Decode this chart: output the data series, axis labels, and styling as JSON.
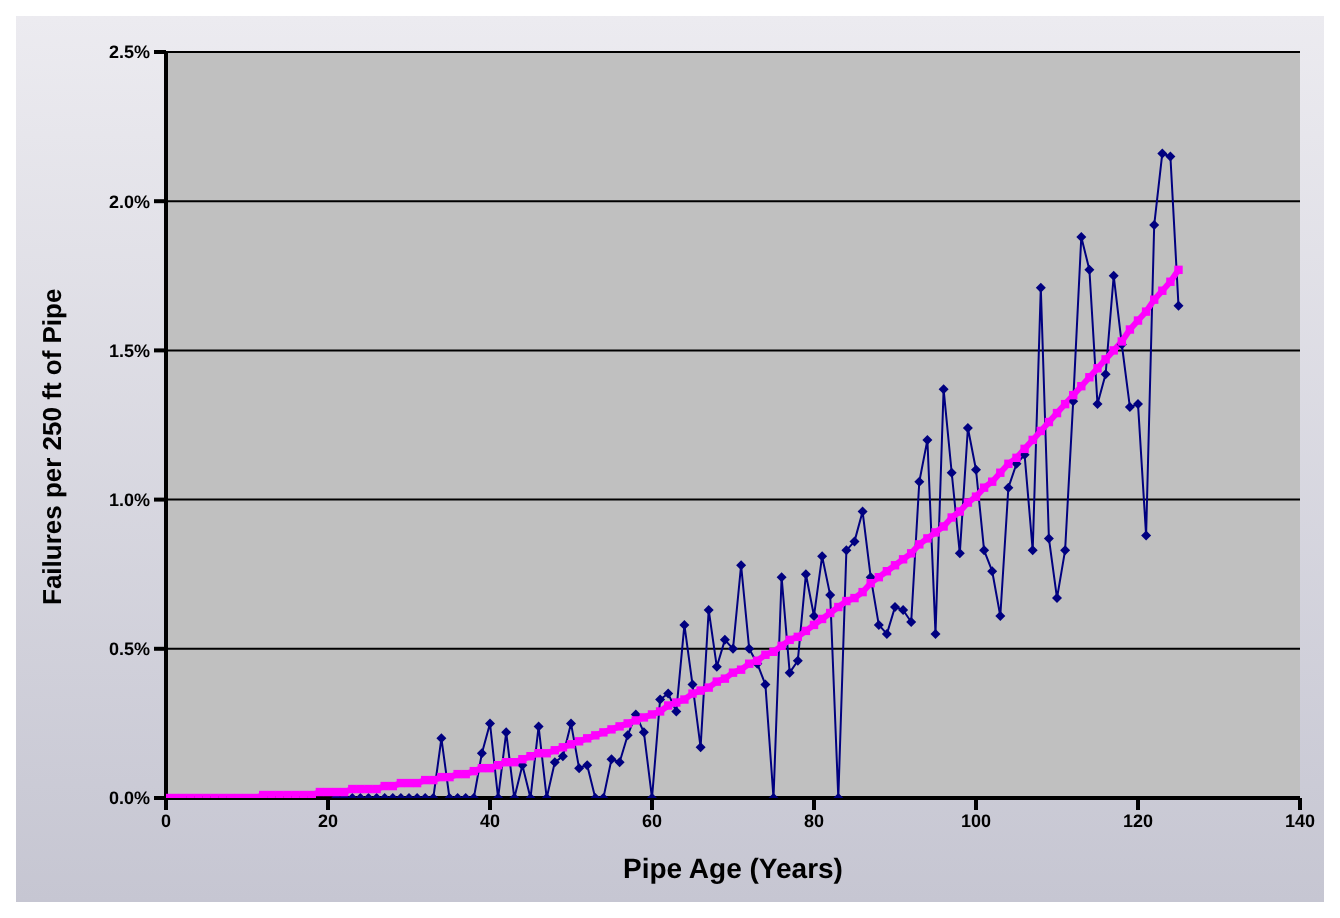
{
  "chart_data": {
    "type": "line",
    "xlabel": "Pipe Age (Years)",
    "ylabel": "Failures per 250 ft of Pipe",
    "xlim": [
      0,
      140
    ],
    "xticks": [
      0,
      20,
      40,
      60,
      80,
      100,
      120,
      140
    ],
    "ylim": [
      0,
      2.5
    ],
    "yticks": [
      {
        "value": 0,
        "label": "0.0%"
      },
      {
        "value": 0.5,
        "label": "0.5%"
      },
      {
        "value": 1,
        "label": "1.0%"
      },
      {
        "value": 1.5,
        "label": "1.5%"
      },
      {
        "value": 2,
        "label": "2.0%"
      },
      {
        "value": 2.5,
        "label": "2.5%"
      }
    ],
    "grid": "y",
    "series": [
      {
        "color": "#000080",
        "marker": "diamond",
        "x": [
          21,
          22,
          23,
          24,
          25,
          26,
          27,
          28,
          29,
          30,
          31,
          32,
          33,
          34,
          35,
          36,
          37,
          38,
          39,
          40,
          41,
          42,
          43,
          44,
          45,
          46,
          47,
          48,
          49,
          50,
          51,
          52,
          53,
          54,
          55,
          56,
          57,
          58,
          59,
          60,
          61,
          62,
          63,
          64,
          65,
          66,
          67,
          68,
          69,
          70,
          71,
          72,
          73,
          74,
          75,
          76,
          77,
          78,
          79,
          80,
          81,
          82,
          83,
          84,
          85,
          86,
          87,
          88,
          89,
          90,
          91,
          92,
          93,
          94,
          95,
          96,
          97,
          98,
          99,
          100,
          101,
          102,
          103,
          104,
          105,
          106,
          107,
          108,
          109,
          110,
          111,
          112,
          113,
          114,
          115,
          116,
          117,
          118,
          119,
          120,
          121,
          122,
          123,
          124,
          125
        ],
        "values": [
          0,
          0,
          0,
          0,
          0,
          0,
          0,
          0,
          0,
          0,
          0,
          0,
          0,
          0.2,
          0,
          0,
          0,
          0,
          0.15,
          0.25,
          0,
          0.22,
          0,
          0.11,
          0,
          0.24,
          0,
          0.12,
          0.14,
          0.25,
          0.1,
          0.11,
          0,
          0,
          0.13,
          0.12,
          0.21,
          0.28,
          0.22,
          0,
          0.33,
          0.35,
          0.29,
          0.58,
          0.38,
          0.17,
          0.63,
          0.44,
          0.53,
          0.5,
          0.78,
          0.5,
          0.45,
          0.38,
          0,
          0.74,
          0.42,
          0.46,
          0.75,
          0.61,
          0.81,
          0.68,
          0,
          0.83,
          0.86,
          0.96,
          0.74,
          0.58,
          0.55,
          0.64,
          0.63,
          0.59,
          1.06,
          1.2,
          0.55,
          1.37,
          1.09,
          0.82,
          1.24,
          1.1,
          0.83,
          0.76,
          0.61,
          1.04,
          1.12,
          1.15,
          0.83,
          1.71,
          0.87,
          0.67,
          0.83,
          1.33,
          1.88,
          1.77,
          1.32,
          1.42,
          1.75,
          1.52,
          1.31,
          1.32,
          0.88,
          1.92,
          2.16,
          2.15,
          1.65
        ]
      },
      {
        "color": "#ff00ff",
        "marker": "square",
        "x": [
          0,
          1,
          2,
          3,
          4,
          5,
          6,
          7,
          8,
          9,
          10,
          11,
          12,
          13,
          14,
          15,
          16,
          17,
          18,
          19,
          20,
          21,
          22,
          23,
          24,
          25,
          26,
          27,
          28,
          29,
          30,
          31,
          32,
          33,
          34,
          35,
          36,
          37,
          38,
          39,
          40,
          41,
          42,
          43,
          44,
          45,
          46,
          47,
          48,
          49,
          50,
          51,
          52,
          53,
          54,
          55,
          56,
          57,
          58,
          59,
          60,
          61,
          62,
          63,
          64,
          65,
          66,
          67,
          68,
          69,
          70,
          71,
          72,
          73,
          74,
          75,
          76,
          77,
          78,
          79,
          80,
          81,
          82,
          83,
          84,
          85,
          86,
          87,
          88,
          89,
          90,
          91,
          92,
          93,
          94,
          95,
          96,
          97,
          98,
          99,
          100,
          101,
          102,
          103,
          104,
          105,
          106,
          107,
          108,
          109,
          110,
          111,
          112,
          113,
          114,
          115,
          116,
          117,
          118,
          119,
          120,
          121,
          122,
          123,
          124,
          125
        ],
        "values": [
          0,
          0,
          0,
          0,
          0,
          0,
          0,
          0,
          0,
          0,
          0,
          0,
          0.01,
          0.01,
          0.01,
          0.01,
          0.01,
          0.01,
          0.01,
          0.02,
          0.02,
          0.02,
          0.02,
          0.03,
          0.03,
          0.03,
          0.03,
          0.04,
          0.04,
          0.05,
          0.05,
          0.05,
          0.06,
          0.06,
          0.07,
          0.07,
          0.08,
          0.08,
          0.09,
          0.1,
          0.1,
          0.11,
          0.12,
          0.12,
          0.13,
          0.14,
          0.15,
          0.15,
          0.16,
          0.17,
          0.18,
          0.19,
          0.2,
          0.21,
          0.22,
          0.23,
          0.24,
          0.25,
          0.26,
          0.27,
          0.28,
          0.29,
          0.31,
          0.32,
          0.33,
          0.35,
          0.36,
          0.37,
          0.39,
          0.4,
          0.42,
          0.43,
          0.45,
          0.46,
          0.48,
          0.49,
          0.51,
          0.53,
          0.54,
          0.56,
          0.58,
          0.6,
          0.62,
          0.64,
          0.66,
          0.67,
          0.69,
          0.72,
          0.74,
          0.76,
          0.78,
          0.8,
          0.82,
          0.85,
          0.87,
          0.89,
          0.91,
          0.94,
          0.96,
          0.99,
          1.01,
          1.04,
          1.06,
          1.09,
          1.12,
          1.14,
          1.17,
          1.2,
          1.23,
          1.26,
          1.29,
          1.32,
          1.35,
          1.38,
          1.41,
          1.44,
          1.47,
          1.5,
          1.53,
          1.57,
          1.6,
          1.63,
          1.67,
          1.7,
          1.73,
          1.77
        ]
      }
    ]
  }
}
